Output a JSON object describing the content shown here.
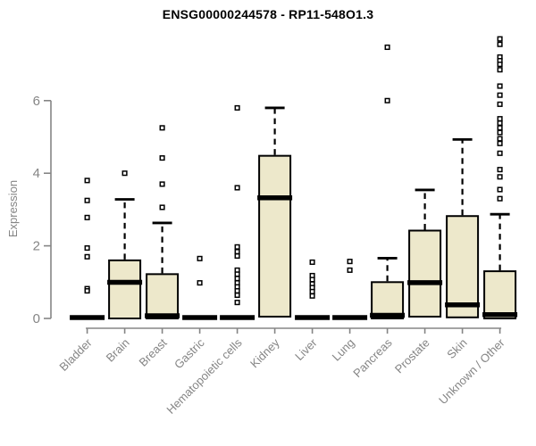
{
  "chart_data": {
    "type": "boxplot",
    "title": "ENSG00000244578 - RP11-548O1.3",
    "ylabel": "Expression",
    "xlabel": "",
    "yticks": [
      0,
      2,
      4,
      6
    ],
    "ylim": [
      0,
      7.9
    ],
    "grid": false,
    "legend": "none",
    "colors": {
      "box_fill": "#EDE8CB",
      "box_stroke": "#000000",
      "axis": "#858585"
    },
    "categories": [
      "Bladder",
      "Brain",
      "Breast",
      "Gastric",
      "Hematopoietic cells",
      "Kidney",
      "Liver",
      "Lung",
      "Pancreas",
      "Prostate",
      "Skin",
      "Unknown / Other"
    ],
    "boxes": [
      {
        "category": "Bladder",
        "q1": 0,
        "median": 0,
        "q3": 0,
        "whisker_high": 0,
        "outliers": [
          3.8,
          3.25,
          2.78,
          1.94,
          1.7,
          0.82,
          0.76
        ]
      },
      {
        "category": "Brain",
        "q1": 0,
        "median": 0.97,
        "q3": 1.6,
        "whisker_high": 3.28,
        "outliers": [
          4.0
        ]
      },
      {
        "category": "Breast",
        "q1": 0,
        "median": 0.05,
        "q3": 1.22,
        "whisker_high": 2.63,
        "outliers": [
          5.25,
          4.42,
          3.7,
          3.06
        ]
      },
      {
        "category": "Gastric",
        "q1": 0,
        "median": 0,
        "q3": 0,
        "whisker_high": 0,
        "outliers": [
          1.65,
          0.98
        ]
      },
      {
        "category": "Hematopoietic cells",
        "q1": 0,
        "median": 0,
        "q3": 0,
        "whisker_high": 0,
        "outliers": [
          5.8,
          3.6,
          1.97,
          1.84,
          1.72,
          1.33,
          1.22,
          1.1,
          0.98,
          0.87,
          0.76,
          0.64,
          0.44
        ]
      },
      {
        "category": "Kidney",
        "q1": 0.05,
        "median": 3.3,
        "q3": 4.48,
        "whisker_high": 5.8,
        "outliers": []
      },
      {
        "category": "Liver",
        "q1": 0,
        "median": 0,
        "q3": 0,
        "whisker_high": 0,
        "outliers": [
          1.55,
          1.18,
          1.07,
          0.95,
          0.85,
          0.74,
          0.62
        ]
      },
      {
        "category": "Lung",
        "q1": 0,
        "median": 0,
        "q3": 0,
        "whisker_high": 0,
        "outliers": [
          1.57,
          1.33
        ]
      },
      {
        "category": "Pancreas",
        "q1": 0,
        "median": 0.06,
        "q3": 1.0,
        "whisker_high": 1.66,
        "outliers": [
          7.47,
          6.0
        ]
      },
      {
        "category": "Prostate",
        "q1": 0.05,
        "median": 0.96,
        "q3": 2.42,
        "whisker_high": 3.54,
        "outliers": []
      },
      {
        "category": "Skin",
        "q1": 0.03,
        "median": 0.35,
        "q3": 2.82,
        "whisker_high": 4.93,
        "outliers": []
      },
      {
        "category": "Unknown / Other",
        "q1": 0,
        "median": 0.08,
        "q3": 1.3,
        "whisker_high": 2.87,
        "outliers": [
          7.7,
          7.55,
          7.2,
          7.1,
          7.0,
          6.85,
          6.4,
          6.15,
          5.9,
          5.5,
          5.38,
          5.25,
          5.12,
          4.95,
          4.82,
          4.55,
          4.1,
          3.9,
          3.55,
          3.3
        ]
      }
    ]
  }
}
